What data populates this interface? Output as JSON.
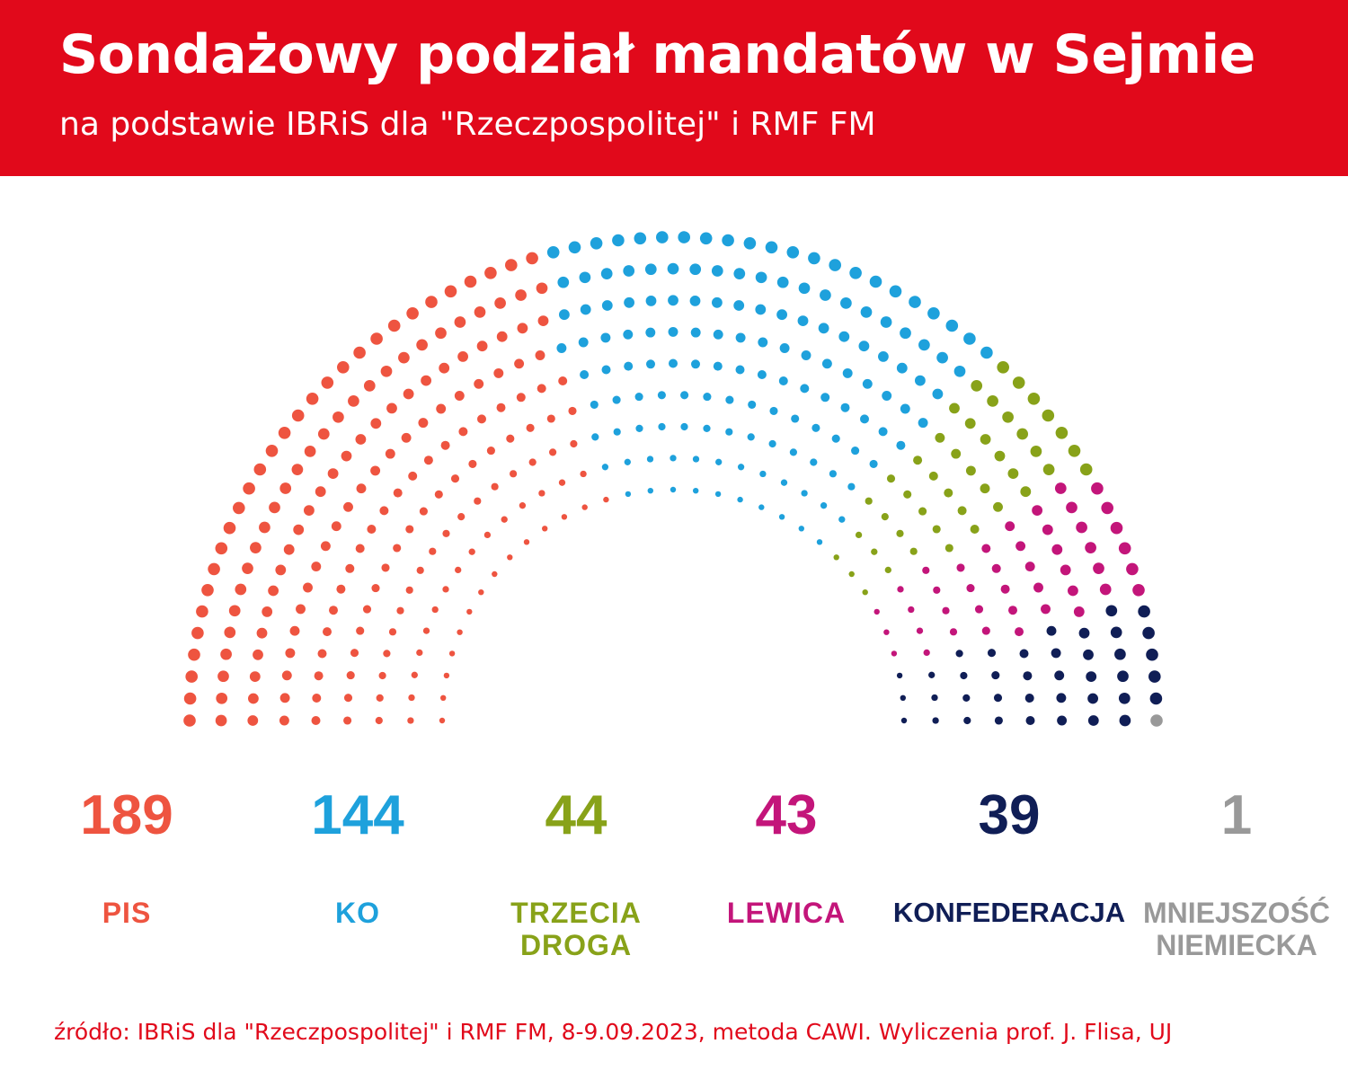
{
  "header": {
    "title": "Sondażowy podział mandatów w Sejmie",
    "subtitle": "na podstawie IBRiS dla \"Rzeczpospolitej\" i RMF FM"
  },
  "chart_data": {
    "type": "parliament",
    "title": "Sondażowy podział mandatów w Sejmie",
    "total_seats": 460,
    "parties": [
      {
        "name": "PIS",
        "seats": 189,
        "color": "#ee5440"
      },
      {
        "name": "KO",
        "seats": 144,
        "color": "#1ea1dc"
      },
      {
        "name": "TRZECIA DROGA",
        "seats": 44,
        "color": "#88a219"
      },
      {
        "name": "LEWICA",
        "seats": 43,
        "color": "#c3157a"
      },
      {
        "name": "KONFEDERACJA",
        "seats": 39,
        "color": "#101e56"
      },
      {
        "name": "MNIEJSZOŚĆ NIEMIECKA",
        "seats": 1,
        "color": "#999999"
      }
    ]
  },
  "labels": {
    "pis": {
      "seats": "189",
      "name": "PIS"
    },
    "ko": {
      "seats": "144",
      "name": "KO"
    },
    "td": {
      "seats": "44",
      "name": "TRZECIA DROGA"
    },
    "lewica": {
      "seats": "43",
      "name": "LEWICA"
    },
    "konf": {
      "seats": "39",
      "name": "KONFEDERACJA"
    },
    "mn": {
      "seats": "1",
      "name": "MNIEJSZOŚĆ NIEMIECKA"
    }
  },
  "footer": {
    "source": "źródło: IBRiS dla \"Rzeczpospolitej\" i RMF FM, 8-9.09.2023, metoda CAWI. Wyliczenia prof. J. Flisa, UJ"
  }
}
